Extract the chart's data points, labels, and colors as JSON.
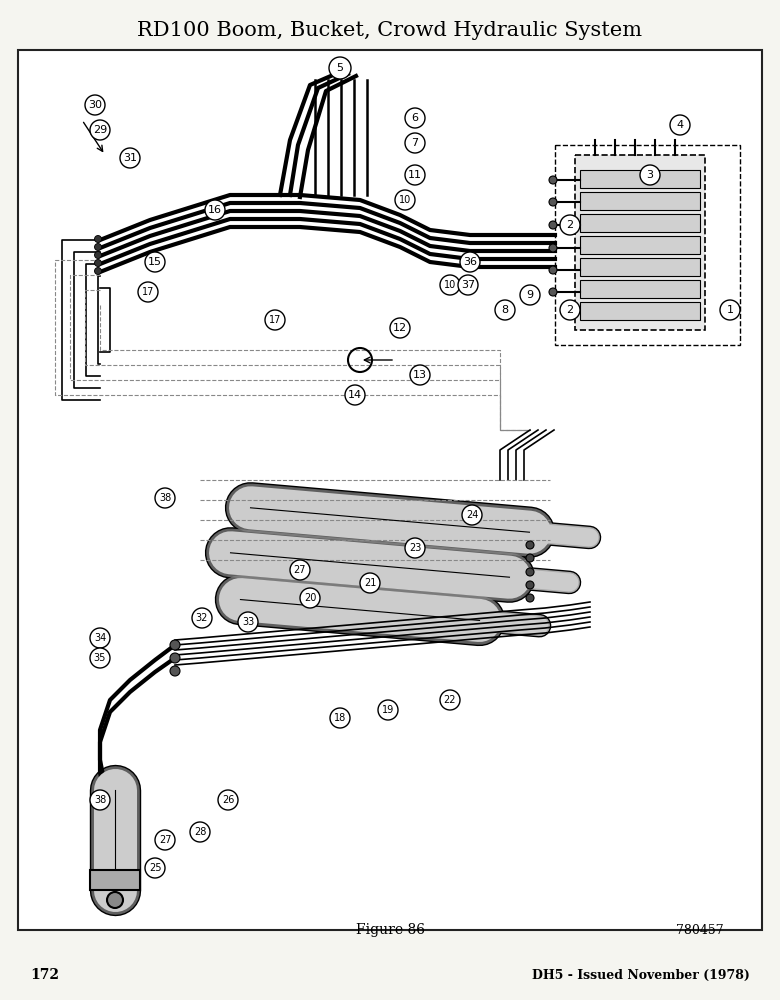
{
  "title": "RD100 Boom, Bucket, Crowd Hydraulic System",
  "figure_label": "Figure 86",
  "figure_number": "780457",
  "page_number": "172",
  "page_right": "DH5 - Issued November (1978)",
  "bg_color": "#f5f5f0",
  "border_color": "#222222",
  "title_fontsize": 15,
  "footer_fontsize": 10,
  "diagram_bg": "#f5f5f0"
}
